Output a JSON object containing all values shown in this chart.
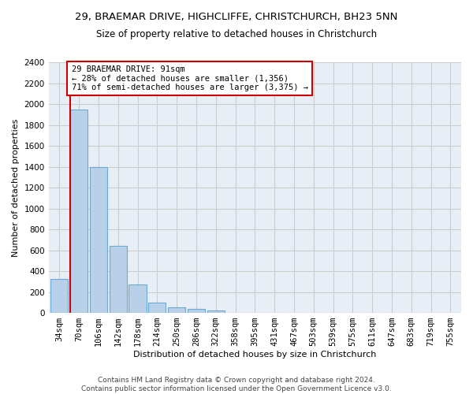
{
  "title_line1": "29, BRAEMAR DRIVE, HIGHCLIFFE, CHRISTCHURCH, BH23 5NN",
  "title_line2": "Size of property relative to detached houses in Christchurch",
  "xlabel": "Distribution of detached houses by size in Christchurch",
  "ylabel": "Number of detached properties",
  "bar_labels": [
    "34sqm",
    "70sqm",
    "106sqm",
    "142sqm",
    "178sqm",
    "214sqm",
    "250sqm",
    "286sqm",
    "322sqm",
    "358sqm",
    "395sqm",
    "431sqm",
    "467sqm",
    "503sqm",
    "539sqm",
    "575sqm",
    "611sqm",
    "647sqm",
    "683sqm",
    "719sqm",
    "755sqm"
  ],
  "bar_heights": [
    325,
    1950,
    1400,
    640,
    275,
    100,
    50,
    42,
    25,
    0,
    0,
    0,
    0,
    0,
    0,
    0,
    0,
    0,
    0,
    0,
    0
  ],
  "bar_color": "#b8d0e8",
  "bar_edge_color": "#6aaad4",
  "annotation_text": "29 BRAEMAR DRIVE: 91sqm\n← 28% of detached houses are smaller (1,356)\n71% of semi-detached houses are larger (3,375) →",
  "annotation_box_color": "#ffffff",
  "annotation_border_color": "#cc0000",
  "vline_color": "#cc0000",
  "ylim": [
    0,
    2400
  ],
  "yticks": [
    0,
    200,
    400,
    600,
    800,
    1000,
    1200,
    1400,
    1600,
    1800,
    2000,
    2200,
    2400
  ],
  "grid_color": "#cccccc",
  "bg_color": "#e8eef5",
  "footnote": "Contains HM Land Registry data © Crown copyright and database right 2024.\nContains public sector information licensed under the Open Government Licence v3.0.",
  "title_fontsize": 9.5,
  "subtitle_fontsize": 8.5,
  "axis_label_fontsize": 8,
  "tick_fontsize": 7.5,
  "annotation_fontsize": 7.5,
  "footnote_fontsize": 6.5
}
